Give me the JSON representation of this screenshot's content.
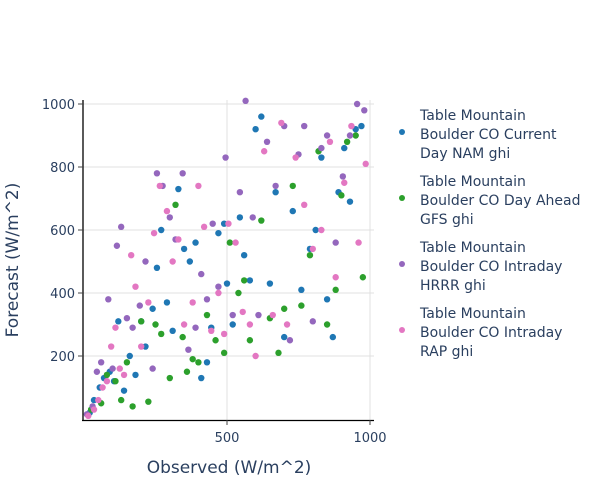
{
  "chart_data": {
    "type": "scatter",
    "title": "",
    "xlabel": "Observed (W/m^2)",
    "ylabel": "Forecast (W/m^2)",
    "xlim": [
      0,
      1010
    ],
    "ylim": [
      0,
      1010
    ],
    "x_ticks": [
      500,
      1000
    ],
    "y_ticks": [
      200,
      400,
      600,
      800,
      1000
    ],
    "grid": true,
    "legend_position": "right",
    "series": [
      {
        "name": "Table Mountain Boulder CO Current Day NAM ghi",
        "color": "#1f77b4",
        "x": [
          20,
          35,
          55,
          70,
          90,
          105,
          120,
          140,
          160,
          180,
          200,
          215,
          240,
          255,
          270,
          290,
          310,
          330,
          350,
          370,
          390,
          410,
          430,
          445,
          470,
          490,
          500,
          520,
          545,
          560,
          580,
          600,
          620,
          650,
          670,
          700,
          730,
          760,
          790,
          810,
          830,
          850,
          870,
          890,
          910,
          930,
          950,
          970
        ],
        "y": [
          20,
          60,
          100,
          130,
          150,
          120,
          310,
          90,
          200,
          140,
          310,
          230,
          350,
          480,
          600,
          370,
          280,
          730,
          540,
          500,
          560,
          130,
          180,
          290,
          590,
          620,
          430,
          300,
          640,
          520,
          440,
          920,
          960,
          430,
          720,
          260,
          660,
          410,
          540,
          600,
          830,
          380,
          260,
          720,
          860,
          690,
          920,
          930
        ]
      },
      {
        "name": "Table Mountain Boulder CO Day Ahead GFS ghi",
        "color": "#2ca02c",
        "x": [
          25,
          60,
          80,
          110,
          130,
          150,
          170,
          200,
          225,
          250,
          270,
          300,
          320,
          345,
          360,
          380,
          400,
          430,
          460,
          490,
          510,
          540,
          560,
          580,
          620,
          650,
          680,
          700,
          730,
          760,
          790,
          820,
          850,
          880,
          900,
          920,
          950,
          975
        ],
        "y": [
          30,
          50,
          140,
          120,
          60,
          180,
          40,
          310,
          55,
          300,
          270,
          130,
          680,
          260,
          150,
          190,
          180,
          330,
          250,
          210,
          560,
          400,
          440,
          250,
          630,
          320,
          210,
          350,
          740,
          360,
          520,
          850,
          300,
          410,
          710,
          880,
          900,
          450
        ]
      },
      {
        "name": "Table Mountain Boulder CO Intraday HRRR ghi",
        "color": "#9467bd",
        "x": [
          10,
          30,
          45,
          60,
          85,
          100,
          115,
          130,
          150,
          170,
          195,
          215,
          240,
          255,
          275,
          300,
          320,
          345,
          365,
          390,
          410,
          430,
          450,
          470,
          495,
          520,
          545,
          565,
          590,
          610,
          640,
          670,
          700,
          720,
          750,
          770,
          800,
          830,
          850,
          880,
          905,
          930,
          955,
          980
        ],
        "y": [
          15,
          40,
          150,
          180,
          380,
          160,
          550,
          610,
          320,
          290,
          360,
          500,
          160,
          780,
          740,
          640,
          570,
          780,
          220,
          290,
          460,
          380,
          620,
          420,
          830,
          330,
          720,
          1010,
          640,
          330,
          880,
          740,
          930,
          250,
          840,
          930,
          310,
          860,
          900,
          560,
          770,
          900,
          1000,
          980
        ]
      },
      {
        "name": "Table Mountain Boulder CO Intraday RAP ghi",
        "color": "#e377c2",
        "x": [
          15,
          35,
          50,
          65,
          80,
          95,
          110,
          125,
          140,
          165,
          180,
          200,
          225,
          245,
          265,
          290,
          310,
          330,
          350,
          380,
          400,
          420,
          445,
          470,
          490,
          505,
          530,
          555,
          580,
          600,
          630,
          660,
          690,
          710,
          740,
          770,
          800,
          830,
          860,
          880,
          910,
          935,
          960,
          985
        ],
        "y": [
          10,
          30,
          60,
          100,
          120,
          230,
          290,
          160,
          140,
          520,
          420,
          230,
          370,
          590,
          740,
          660,
          500,
          570,
          300,
          370,
          740,
          610,
          280,
          400,
          270,
          620,
          560,
          340,
          300,
          200,
          850,
          330,
          940,
          300,
          830,
          680,
          540,
          600,
          880,
          450,
          750,
          930,
          560,
          810
        ]
      }
    ]
  },
  "legend": {
    "items": [
      {
        "label": "Table Mountain\nBoulder CO Current\nDay NAM ghi",
        "color": "#1f77b4"
      },
      {
        "label": "Table Mountain\nBoulder CO Day Ahead\nGFS ghi",
        "color": "#2ca02c"
      },
      {
        "label": "Table Mountain\nBoulder CO Intraday\nHRRR ghi",
        "color": "#9467bd"
      },
      {
        "label": "Table Mountain\nBoulder CO Intraday\nRAP ghi",
        "color": "#e377c2"
      }
    ]
  },
  "axes": {
    "x_title": "Observed (W/m^2)",
    "y_title": "Forecast (W/m^2)",
    "x_tick_labels": [
      "500",
      "1000"
    ],
    "y_tick_labels": [
      "200",
      "400",
      "600",
      "800",
      "1000"
    ]
  }
}
